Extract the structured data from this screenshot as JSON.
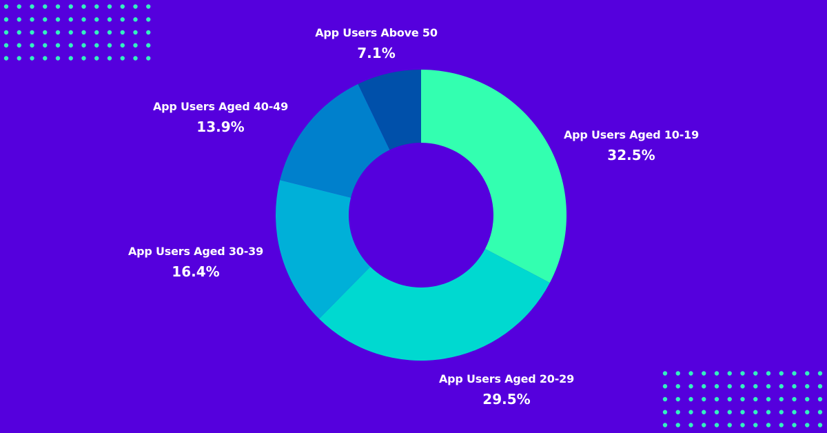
{
  "colors": {
    "background": "#5500DD",
    "dots": "#33F0C0",
    "text": "#FFFFFF"
  },
  "chart_data": {
    "type": "pie",
    "variant": "donut",
    "title": "",
    "categories": [
      "App Users Aged 10-19",
      "App Users Aged 20-29",
      "App Users Aged 30-39",
      "App Users Aged 40-49",
      "App Users Above 50"
    ],
    "values": [
      32.5,
      29.5,
      16.4,
      13.9,
      7.1
    ],
    "value_labels": [
      "32.5%",
      "29.5%",
      "16.4%",
      "13.9%",
      "7.1%"
    ],
    "colors": [
      "#33FFB0",
      "#00D9D0",
      "#00B0D8",
      "#0080CC",
      "#0050AA"
    ],
    "start_angle": "12 o'clock, clockwise",
    "legend": "none (direct labels)"
  },
  "labels": [
    {
      "name": "App Users Aged 10-19",
      "pct": "32.5%"
    },
    {
      "name": "App Users Aged 20-29",
      "pct": "29.5%"
    },
    {
      "name": "App Users Aged 30-39",
      "pct": "16.4%"
    },
    {
      "name": "App Users Aged 40-49",
      "pct": "13.9%"
    },
    {
      "name": "App Users Above 50",
      "pct": "7.1%"
    }
  ]
}
